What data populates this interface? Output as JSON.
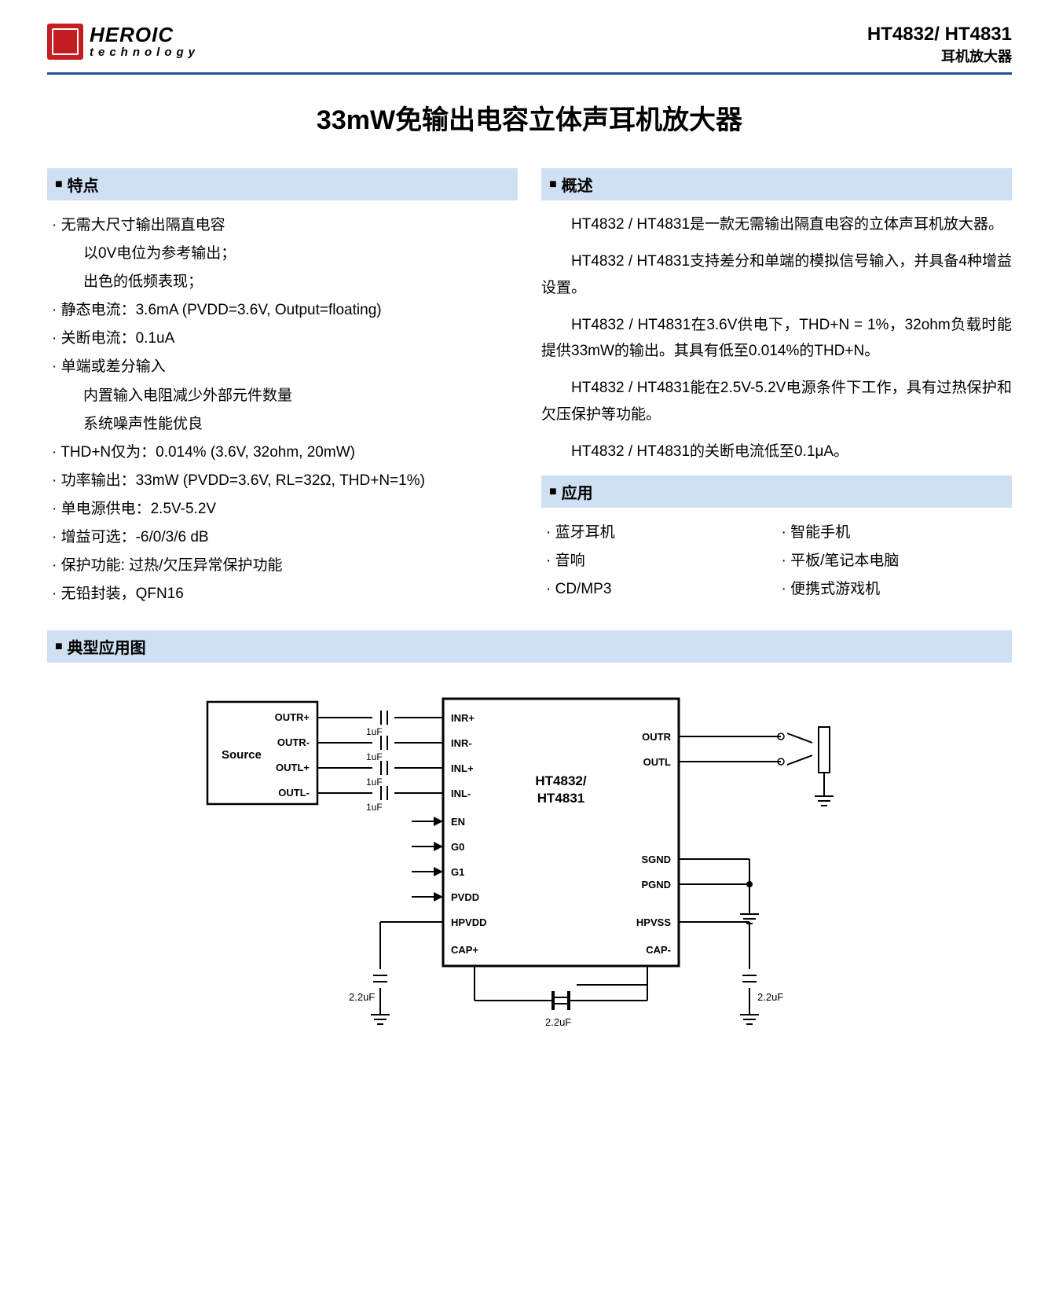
{
  "header": {
    "brand_main": "HEROIC",
    "brand_sub": "technology",
    "part_no": "HT4832/ HT4831",
    "part_sub": "耳机放大器"
  },
  "title": "33mW免输出电容立体声耳机放大器",
  "sections": {
    "features_hdr": "特点",
    "overview_hdr": "概述",
    "apps_hdr": "应用",
    "typical_hdr": "典型应用图"
  },
  "features": [
    {
      "t": "无需大尺寸输出隔直电容",
      "sub": false
    },
    {
      "t": "以0V电位为参考输出；",
      "sub": true
    },
    {
      "t": "出色的低频表现；",
      "sub": true
    },
    {
      "t": "静态电流：3.6mA (PVDD=3.6V, Output=floating)",
      "sub": false
    },
    {
      "t": "关断电流：0.1uA",
      "sub": false
    },
    {
      "t": "单端或差分输入",
      "sub": false
    },
    {
      "t": "内置输入电阻减少外部元件数量",
      "sub": true
    },
    {
      "t": "系统噪声性能优良",
      "sub": true
    },
    {
      "t": "THD+N仅为：0.014% (3.6V, 32ohm, 20mW)",
      "sub": false
    },
    {
      "t": "功率输出：33mW (PVDD=3.6V, RL=32Ω, THD+N=1%)",
      "sub": false
    },
    {
      "t": "单电源供电：2.5V-5.2V",
      "sub": false
    },
    {
      "t": "增益可选：-6/0/3/6 dB",
      "sub": false
    },
    {
      "t": "保护功能: 过热/欠压异常保护功能",
      "sub": false
    },
    {
      "t": "无铅封装，QFN16",
      "sub": false
    }
  ],
  "overview": [
    "HT4832 / HT4831是一款无需输出隔直电容的立体声耳机放大器。",
    "HT4832 / HT4831支持差分和单端的模拟信号输入，并具备4种增益设置。",
    "HT4832 / HT4831在3.6V供电下，THD+N = 1%，32ohm负载时能提供33mW的输出。其具有低至0.014%的THD+N。",
    "HT4832 / HT4831能在2.5V-5.2V电源条件下工作，具有过热保护和欠压保护等功能。",
    "HT4832 / HT4831的关断电流低至0.1μA。"
  ],
  "apps_left": [
    "蓝牙耳机",
    "音响",
    "CD/MP3"
  ],
  "apps_right": [
    "智能手机",
    "平板/笔记本电脑",
    "便携式游戏机"
  ],
  "diagram": {
    "source_label": "Source",
    "source_pins": [
      "OUTR+",
      "OUTR-",
      "OUTL+",
      "OUTL-"
    ],
    "cap_in": "1uF",
    "chip_label1": "HT4832/",
    "chip_label2": "HT4831",
    "left_pins": [
      "INR+",
      "INR-",
      "INL+",
      "INL-",
      "EN",
      "G0",
      "G1",
      "PVDD",
      "HPVDD"
    ],
    "right_pins_top": [
      "OUTR",
      "OUTL"
    ],
    "right_pins_mid": [
      "SGND",
      "PGND"
    ],
    "right_pins_bot": "HPVSS",
    "cap_plus": "CAP+",
    "cap_minus": "CAP-",
    "cap_22": "2.2uF",
    "colors": {
      "stroke": "#000000",
      "section_bg": "#cfe0f2",
      "rule": "#2050a0",
      "logo": "#c41e22"
    }
  }
}
